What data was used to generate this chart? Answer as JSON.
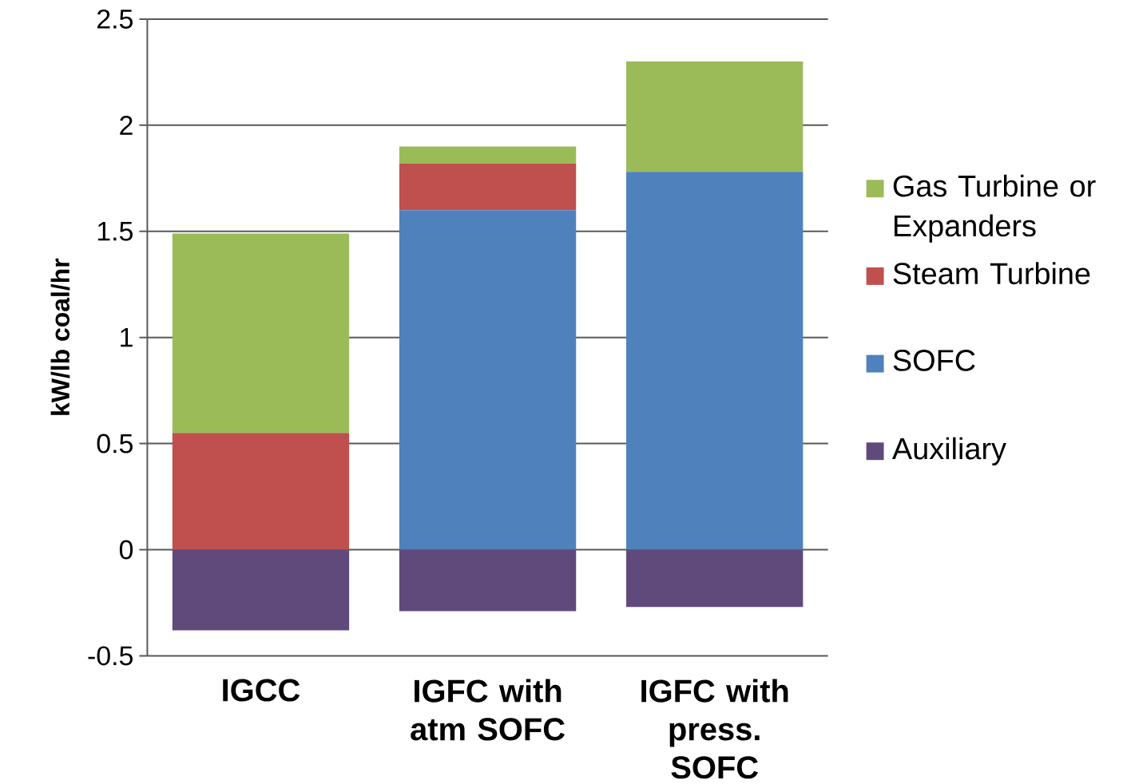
{
  "chart_data": {
    "type": "bar",
    "stacked": true,
    "ylabel": "kW/lb coal/hr",
    "categories": [
      "IGCC",
      "IGFC with atm SOFC",
      "IGFC with press. SOFC"
    ],
    "ylim": [
      -0.5,
      2.5
    ],
    "yticks": [
      -0.5,
      0,
      0.5,
      1,
      1.5,
      2,
      2.5
    ],
    "grid": "y",
    "legend": "right",
    "series": [
      {
        "name": "Auxiliary",
        "color": "#604a7b",
        "values": [
          -0.38,
          -0.29,
          -0.27
        ]
      },
      {
        "name": "SOFC",
        "color": "#4f81bd",
        "values": [
          0,
          1.6,
          1.78
        ]
      },
      {
        "name": "Steam Turbine",
        "color": "#c0504d",
        "values": [
          0.55,
          0.22,
          0
        ]
      },
      {
        "name": "Gas Turbine or Expanders",
        "color": "#9bbb59",
        "values": [
          0.94,
          0.08,
          0.52
        ]
      }
    ]
  }
}
